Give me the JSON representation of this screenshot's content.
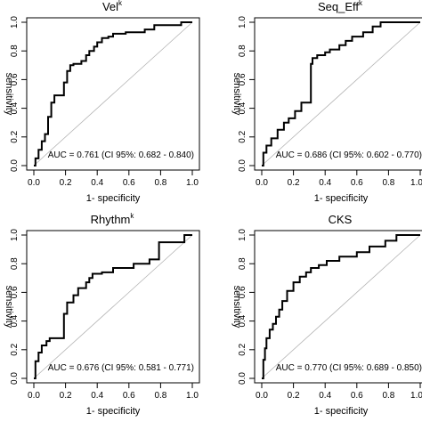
{
  "chart_data": [
    {
      "type": "line",
      "title": "Vel",
      "title_superscript": "k",
      "xlabel": "1- specificity",
      "ylabel": "sensitivity",
      "xlim": [
        0,
        1
      ],
      "ylim": [
        0,
        1
      ],
      "xticks": [
        "0.0",
        "0.2",
        "0.4",
        "0.6",
        "0.8",
        "1.0"
      ],
      "yticks": [
        "0.0",
        "0.2",
        "0.4",
        "0.6",
        "0.8",
        "1.0"
      ],
      "annotation": "AUC = 0.761 (CI 95%: 0.682 - 0.840)",
      "diagonal_reference": true,
      "series": [
        {
          "x": [
            0.0,
            0.01,
            0.01,
            0.03,
            0.03,
            0.05,
            0.05,
            0.07,
            0.07,
            0.09,
            0.09,
            0.11,
            0.11,
            0.13,
            0.13,
            0.19,
            0.19,
            0.21,
            0.21,
            0.23,
            0.23,
            0.25,
            0.25,
            0.3,
            0.3,
            0.33,
            0.33,
            0.35,
            0.35,
            0.38,
            0.38,
            0.4,
            0.4,
            0.43,
            0.43,
            0.47,
            0.47,
            0.5,
            0.5,
            0.58,
            0.58,
            0.7,
            0.7,
            0.76,
            0.76,
            0.93,
            0.93,
            1.0
          ],
          "y": [
            0.0,
            0.0,
            0.05,
            0.05,
            0.11,
            0.11,
            0.17,
            0.17,
            0.22,
            0.22,
            0.34,
            0.34,
            0.44,
            0.44,
            0.49,
            0.49,
            0.58,
            0.58,
            0.66,
            0.66,
            0.7,
            0.7,
            0.71,
            0.71,
            0.73,
            0.73,
            0.77,
            0.77,
            0.8,
            0.8,
            0.83,
            0.83,
            0.86,
            0.86,
            0.89,
            0.89,
            0.9,
            0.9,
            0.92,
            0.92,
            0.93,
            0.93,
            0.95,
            0.95,
            0.98,
            0.98,
            1.0,
            1.0
          ]
        }
      ]
    },
    {
      "type": "line",
      "title": "Seq_Eff",
      "title_superscript": "k",
      "xlabel": "1- specificity",
      "ylabel": "sensitivity",
      "xlim": [
        0,
        1
      ],
      "ylim": [
        0,
        1
      ],
      "xticks": [
        "0.0",
        "0.2",
        "0.4",
        "0.6",
        "0.8",
        "1.0"
      ],
      "yticks": [
        "0.0",
        "0.2",
        "0.4",
        "0.6",
        "0.8",
        "1.0"
      ],
      "annotation": "AUC = 0.686 (CI 95%: 0.602 - 0.770)",
      "diagonal_reference": true,
      "series": [
        {
          "x": [
            0.0,
            0.01,
            0.01,
            0.03,
            0.03,
            0.06,
            0.06,
            0.1,
            0.1,
            0.14,
            0.14,
            0.17,
            0.17,
            0.21,
            0.21,
            0.25,
            0.25,
            0.31,
            0.31,
            0.32,
            0.32,
            0.35,
            0.35,
            0.4,
            0.4,
            0.43,
            0.43,
            0.49,
            0.49,
            0.53,
            0.53,
            0.57,
            0.57,
            0.64,
            0.64,
            0.7,
            0.7,
            0.75,
            0.75,
            1.0
          ],
          "y": [
            0.0,
            0.0,
            0.09,
            0.09,
            0.14,
            0.14,
            0.19,
            0.19,
            0.25,
            0.25,
            0.3,
            0.3,
            0.33,
            0.33,
            0.38,
            0.38,
            0.44,
            0.44,
            0.71,
            0.71,
            0.75,
            0.75,
            0.77,
            0.77,
            0.79,
            0.79,
            0.81,
            0.81,
            0.84,
            0.84,
            0.87,
            0.87,
            0.9,
            0.9,
            0.93,
            0.93,
            0.97,
            0.97,
            1.0,
            1.0
          ]
        }
      ]
    },
    {
      "type": "line",
      "title": "Rhythm",
      "title_superscript": "k",
      "xlabel": "1- specificity",
      "ylabel": "sensitivity",
      "xlim": [
        0,
        1
      ],
      "ylim": [
        0,
        1
      ],
      "xticks": [
        "0.0",
        "0.2",
        "0.4",
        "0.6",
        "0.8",
        "1.0"
      ],
      "yticks": [
        "0.0",
        "0.2",
        "0.4",
        "0.6",
        "0.8",
        "1.0"
      ],
      "annotation": "AUC = 0.676 (CI 95%: 0.581 - 0.771)",
      "diagonal_reference": true,
      "series": [
        {
          "x": [
            0.0,
            0.01,
            0.01,
            0.03,
            0.03,
            0.05,
            0.05,
            0.08,
            0.08,
            0.1,
            0.1,
            0.19,
            0.19,
            0.21,
            0.21,
            0.25,
            0.25,
            0.28,
            0.28,
            0.33,
            0.33,
            0.35,
            0.35,
            0.37,
            0.37,
            0.43,
            0.43,
            0.5,
            0.5,
            0.63,
            0.63,
            0.73,
            0.73,
            0.79,
            0.79,
            0.95,
            0.95,
            1.0
          ],
          "y": [
            0.0,
            0.0,
            0.12,
            0.12,
            0.18,
            0.18,
            0.23,
            0.23,
            0.26,
            0.26,
            0.28,
            0.28,
            0.45,
            0.45,
            0.53,
            0.53,
            0.58,
            0.58,
            0.63,
            0.63,
            0.67,
            0.67,
            0.7,
            0.7,
            0.73,
            0.73,
            0.74,
            0.74,
            0.77,
            0.77,
            0.8,
            0.8,
            0.83,
            0.83,
            0.95,
            0.95,
            1.0,
            1.0
          ]
        }
      ]
    },
    {
      "type": "line",
      "title": "CKS",
      "xlabel": "1- specificity",
      "ylabel": "sensitivity",
      "xlim": [
        0,
        1
      ],
      "ylim": [
        0,
        1
      ],
      "xticks": [
        "0.0",
        "0.2",
        "0.4",
        "0.6",
        "0.8",
        "1.0"
      ],
      "yticks": [
        "0.0",
        "0.2",
        "0.4",
        "0.6",
        "0.8",
        "1.0"
      ],
      "annotation": "AUC = 0.770 (CI 95%: 0.689 - 0.850)",
      "diagonal_reference": true,
      "series": [
        {
          "x": [
            0.0,
            0.01,
            0.01,
            0.02,
            0.02,
            0.03,
            0.03,
            0.05,
            0.05,
            0.07,
            0.07,
            0.09,
            0.09,
            0.11,
            0.11,
            0.13,
            0.13,
            0.16,
            0.16,
            0.2,
            0.2,
            0.24,
            0.24,
            0.28,
            0.28,
            0.31,
            0.31,
            0.36,
            0.36,
            0.41,
            0.41,
            0.49,
            0.49,
            0.6,
            0.6,
            0.68,
            0.68,
            0.78,
            0.78,
            0.85,
            0.85,
            1.0
          ],
          "y": [
            0.0,
            0.0,
            0.13,
            0.13,
            0.21,
            0.21,
            0.28,
            0.28,
            0.34,
            0.34,
            0.38,
            0.38,
            0.43,
            0.43,
            0.48,
            0.48,
            0.54,
            0.54,
            0.61,
            0.61,
            0.67,
            0.67,
            0.71,
            0.71,
            0.74,
            0.74,
            0.77,
            0.77,
            0.79,
            0.79,
            0.82,
            0.82,
            0.85,
            0.85,
            0.88,
            0.88,
            0.92,
            0.92,
            0.96,
            0.96,
            1.0,
            1.0
          ]
        }
      ]
    }
  ]
}
